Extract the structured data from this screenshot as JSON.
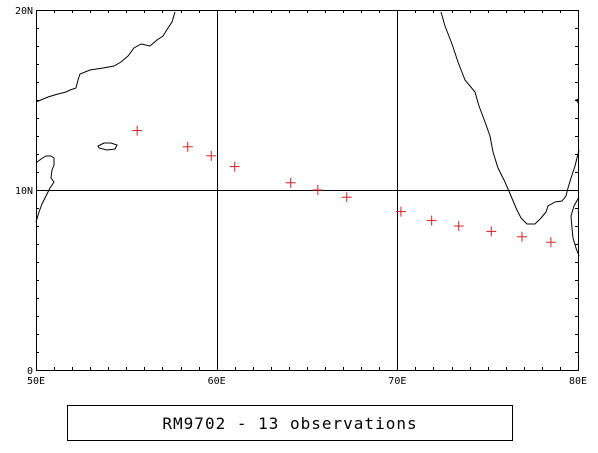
{
  "chart_data": {
    "type": "scatter",
    "marker": "+",
    "marker_color": "#d62020",
    "grid": true,
    "xlim": [
      50,
      80
    ],
    "ylim": [
      0,
      20
    ],
    "x_ticks": [
      {
        "value": 50,
        "label": "50E"
      },
      {
        "value": 60,
        "label": "60E"
      },
      {
        "value": 70,
        "label": "70E"
      },
      {
        "value": 80,
        "label": "80E"
      }
    ],
    "y_ticks": [
      {
        "value": 0,
        "label": "0"
      },
      {
        "value": 10,
        "label": "10N"
      },
      {
        "value": 20,
        "label": "20N"
      }
    ],
    "points": [
      {
        "lon": 55.6,
        "lat": 13.3
      },
      {
        "lon": 58.4,
        "lat": 12.4
      },
      {
        "lon": 59.7,
        "lat": 11.9
      },
      {
        "lon": 61.0,
        "lat": 11.3
      },
      {
        "lon": 64.1,
        "lat": 10.4
      },
      {
        "lon": 65.6,
        "lat": 10.0
      },
      {
        "lon": 67.2,
        "lat": 9.6
      },
      {
        "lon": 70.2,
        "lat": 8.8
      },
      {
        "lon": 71.9,
        "lat": 8.3
      },
      {
        "lon": 73.4,
        "lat": 8.0
      },
      {
        "lon": 75.2,
        "lat": 7.7
      },
      {
        "lon": 76.9,
        "lat": 7.4
      },
      {
        "lon": 78.5,
        "lat": 7.1
      }
    ]
  },
  "caption": "RM9702 - 13 observations"
}
